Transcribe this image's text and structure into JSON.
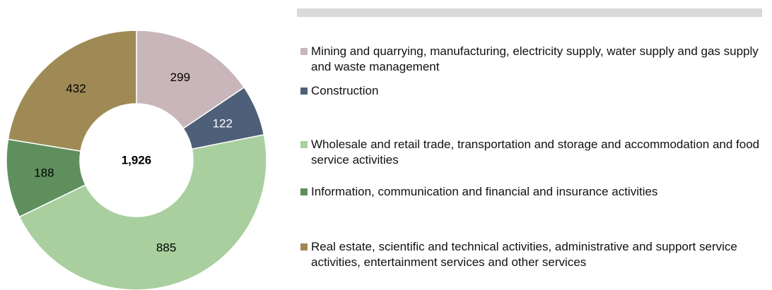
{
  "chart_data": {
    "type": "donut",
    "categories": [
      "Mining and quarrying, manufacturing, electricity supply, water supply and gas supply and waste management",
      "Construction",
      "Wholesale and retail trade, transportation and storage and accommodation and food service activities",
      "Information, communication and financial and insurance activities",
      "Real estate, scientific and technical activities, administrative and support service activities, entertainment services and other services"
    ],
    "values": [
      299,
      122,
      885,
      188,
      432
    ],
    "colors": [
      "#c9b6ba",
      "#4e6079",
      "#a9cf9f",
      "#5f8f5d",
      "#9f8a55"
    ],
    "label_colors": [
      "#000000",
      "#ffffff",
      "#000000",
      "#000000",
      "#000000"
    ],
    "center_text": "1,926",
    "legend": "right"
  }
}
